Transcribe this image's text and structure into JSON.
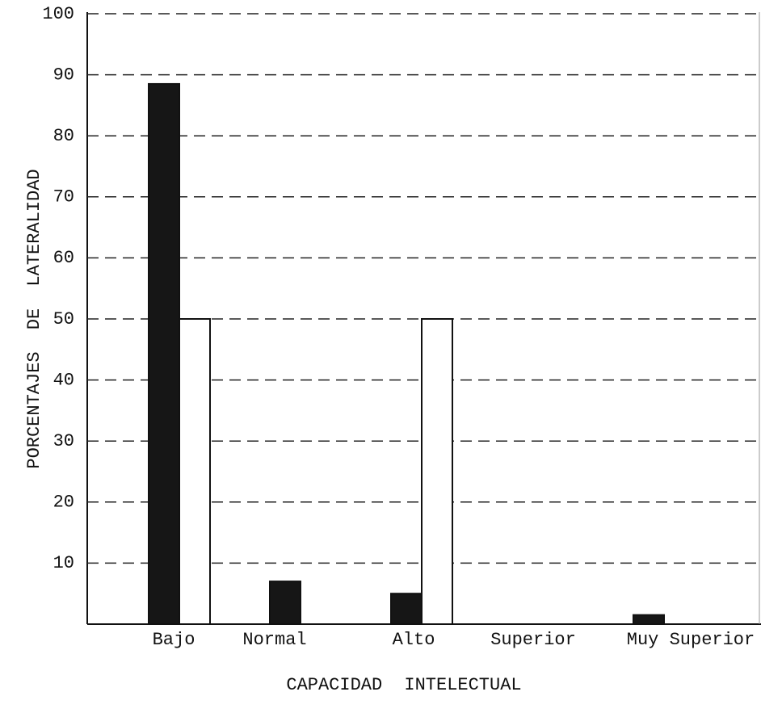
{
  "chart_data": {
    "type": "bar",
    "categories": [
      "Bajo",
      "Normal",
      "Alto",
      "Superior",
      "Muy Superior"
    ],
    "series": [
      {
        "color": "#161616",
        "values": [
          88.5,
          7,
          5,
          0,
          1.5
        ]
      },
      {
        "color": "#ffffff",
        "values": [
          50,
          0,
          50,
          0,
          0
        ]
      }
    ],
    "ylim": [
      0,
      100
    ],
    "yticks": [
      10,
      20,
      30,
      40,
      50,
      60,
      70,
      80,
      90,
      100
    ],
    "grid": true,
    "x_label": "CAPACIDAD INTELECTUAL",
    "y_label": "PORCENTAJES DE LATERALIDAD"
  }
}
